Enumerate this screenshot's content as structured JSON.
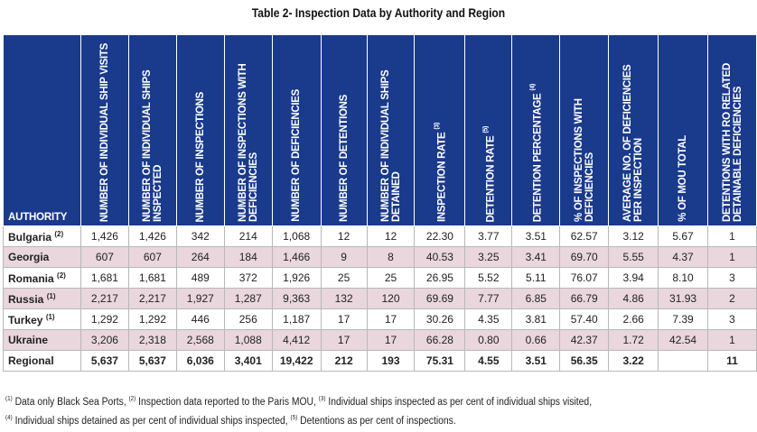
{
  "title": "Table 2- Inspection Data by Authority and Region",
  "columns": [
    {
      "label": "AUTHORITY"
    },
    {
      "label": "NUMBER OF INDIVIDUAL SHIP VISITS"
    },
    {
      "label": "NUMBER OF INDIVIDUAL SHIPS INSPECTED"
    },
    {
      "label": "NUMBER OF INSPECTIONS"
    },
    {
      "label": "NUMBER OF INSPECTIONS WITH DEFICIENCIES"
    },
    {
      "label": "NUMBER OF DEFICIENCIES"
    },
    {
      "label": "NUMBER OF DETENTIONS"
    },
    {
      "label": "NUMBER OF INDIVIDUAL SHIPS DETAINED"
    },
    {
      "label": "INSPECTION RATE",
      "note": "(3)"
    },
    {
      "label": "DETENTION RATE",
      "note": "(5)"
    },
    {
      "label": "DETENTION PERCENTAGE",
      "note": "(4)"
    },
    {
      "label": "% OF INSPECTIONS WITH DEFICIENCIES"
    },
    {
      "label": "AVERAGE NO. OF DEFICIENCIES PER INSPECTION"
    },
    {
      "label": "% OF MOU TOTAL"
    },
    {
      "label": "DETENTIONS WITH RO RELATED DETAINABLE DEFICIENCIES"
    }
  ],
  "rows": [
    {
      "name": "Bulgaria",
      "note": "(2)",
      "values": [
        "1,426",
        "1,426",
        "342",
        "214",
        "1,068",
        "12",
        "12",
        "22.30",
        "3.77",
        "3.51",
        "62.57",
        "3.12",
        "5.67",
        "1"
      ]
    },
    {
      "name": "Georgia",
      "note": "",
      "values": [
        "607",
        "607",
        "264",
        "184",
        "1,466",
        "9",
        "8",
        "40.53",
        "3.25",
        "3.41",
        "69.70",
        "5.55",
        "4.37",
        "1"
      ]
    },
    {
      "name": "Romania",
      "note": "(2)",
      "values": [
        "1,681",
        "1,681",
        "489",
        "372",
        "1,926",
        "25",
        "25",
        "26.95",
        "5.52",
        "5.11",
        "76.07",
        "3.94",
        "8.10",
        "3"
      ]
    },
    {
      "name": "Russia",
      "note": "(1)",
      "values": [
        "2,217",
        "2,217",
        "1,927",
        "1,287",
        "9,363",
        "132",
        "120",
        "69.69",
        "7.77",
        "6.85",
        "66.79",
        "4.86",
        "31.93",
        "2"
      ]
    },
    {
      "name": "Turkey",
      "note": "(1)",
      "values": [
        "1,292",
        "1,292",
        "446",
        "256",
        "1,187",
        "17",
        "17",
        "30.26",
        "4.35",
        "3.81",
        "57.40",
        "2.66",
        "7.39",
        "3"
      ]
    },
    {
      "name": "Ukraine",
      "note": "",
      "values": [
        "3,206",
        "2,318",
        "2,568",
        "1,088",
        "4,412",
        "17",
        "17",
        "66.28",
        "0.80",
        "0.66",
        "42.37",
        "1.72",
        "42.54",
        "1"
      ]
    },
    {
      "name": "Regional",
      "note": "",
      "values": [
        "5,637",
        "5,637",
        "6,036",
        "3,401",
        "19,422",
        "212",
        "193",
        "75.31",
        "4.55",
        "3.51",
        "56.35",
        "3.22",
        "",
        "11"
      ]
    }
  ],
  "footnotes": [
    [
      {
        "mark": "(1)",
        "text": " Data only Black Sea Ports, "
      },
      {
        "mark": "(2)",
        "text": " Inspection data reported to the Paris MOU, "
      },
      {
        "mark": "(3)",
        "text": " Individual ships inspected as per cent of individual ships visited,"
      }
    ],
    [
      {
        "mark": "(4)",
        "text": " Individual ships detained as per cent of individual ships inspected, "
      },
      {
        "mark": "(5)",
        "text": " Detentions as per cent of inspections."
      }
    ]
  ],
  "colors": {
    "header": "#1a3a8c",
    "shaded_row": "#e9d7dd"
  }
}
